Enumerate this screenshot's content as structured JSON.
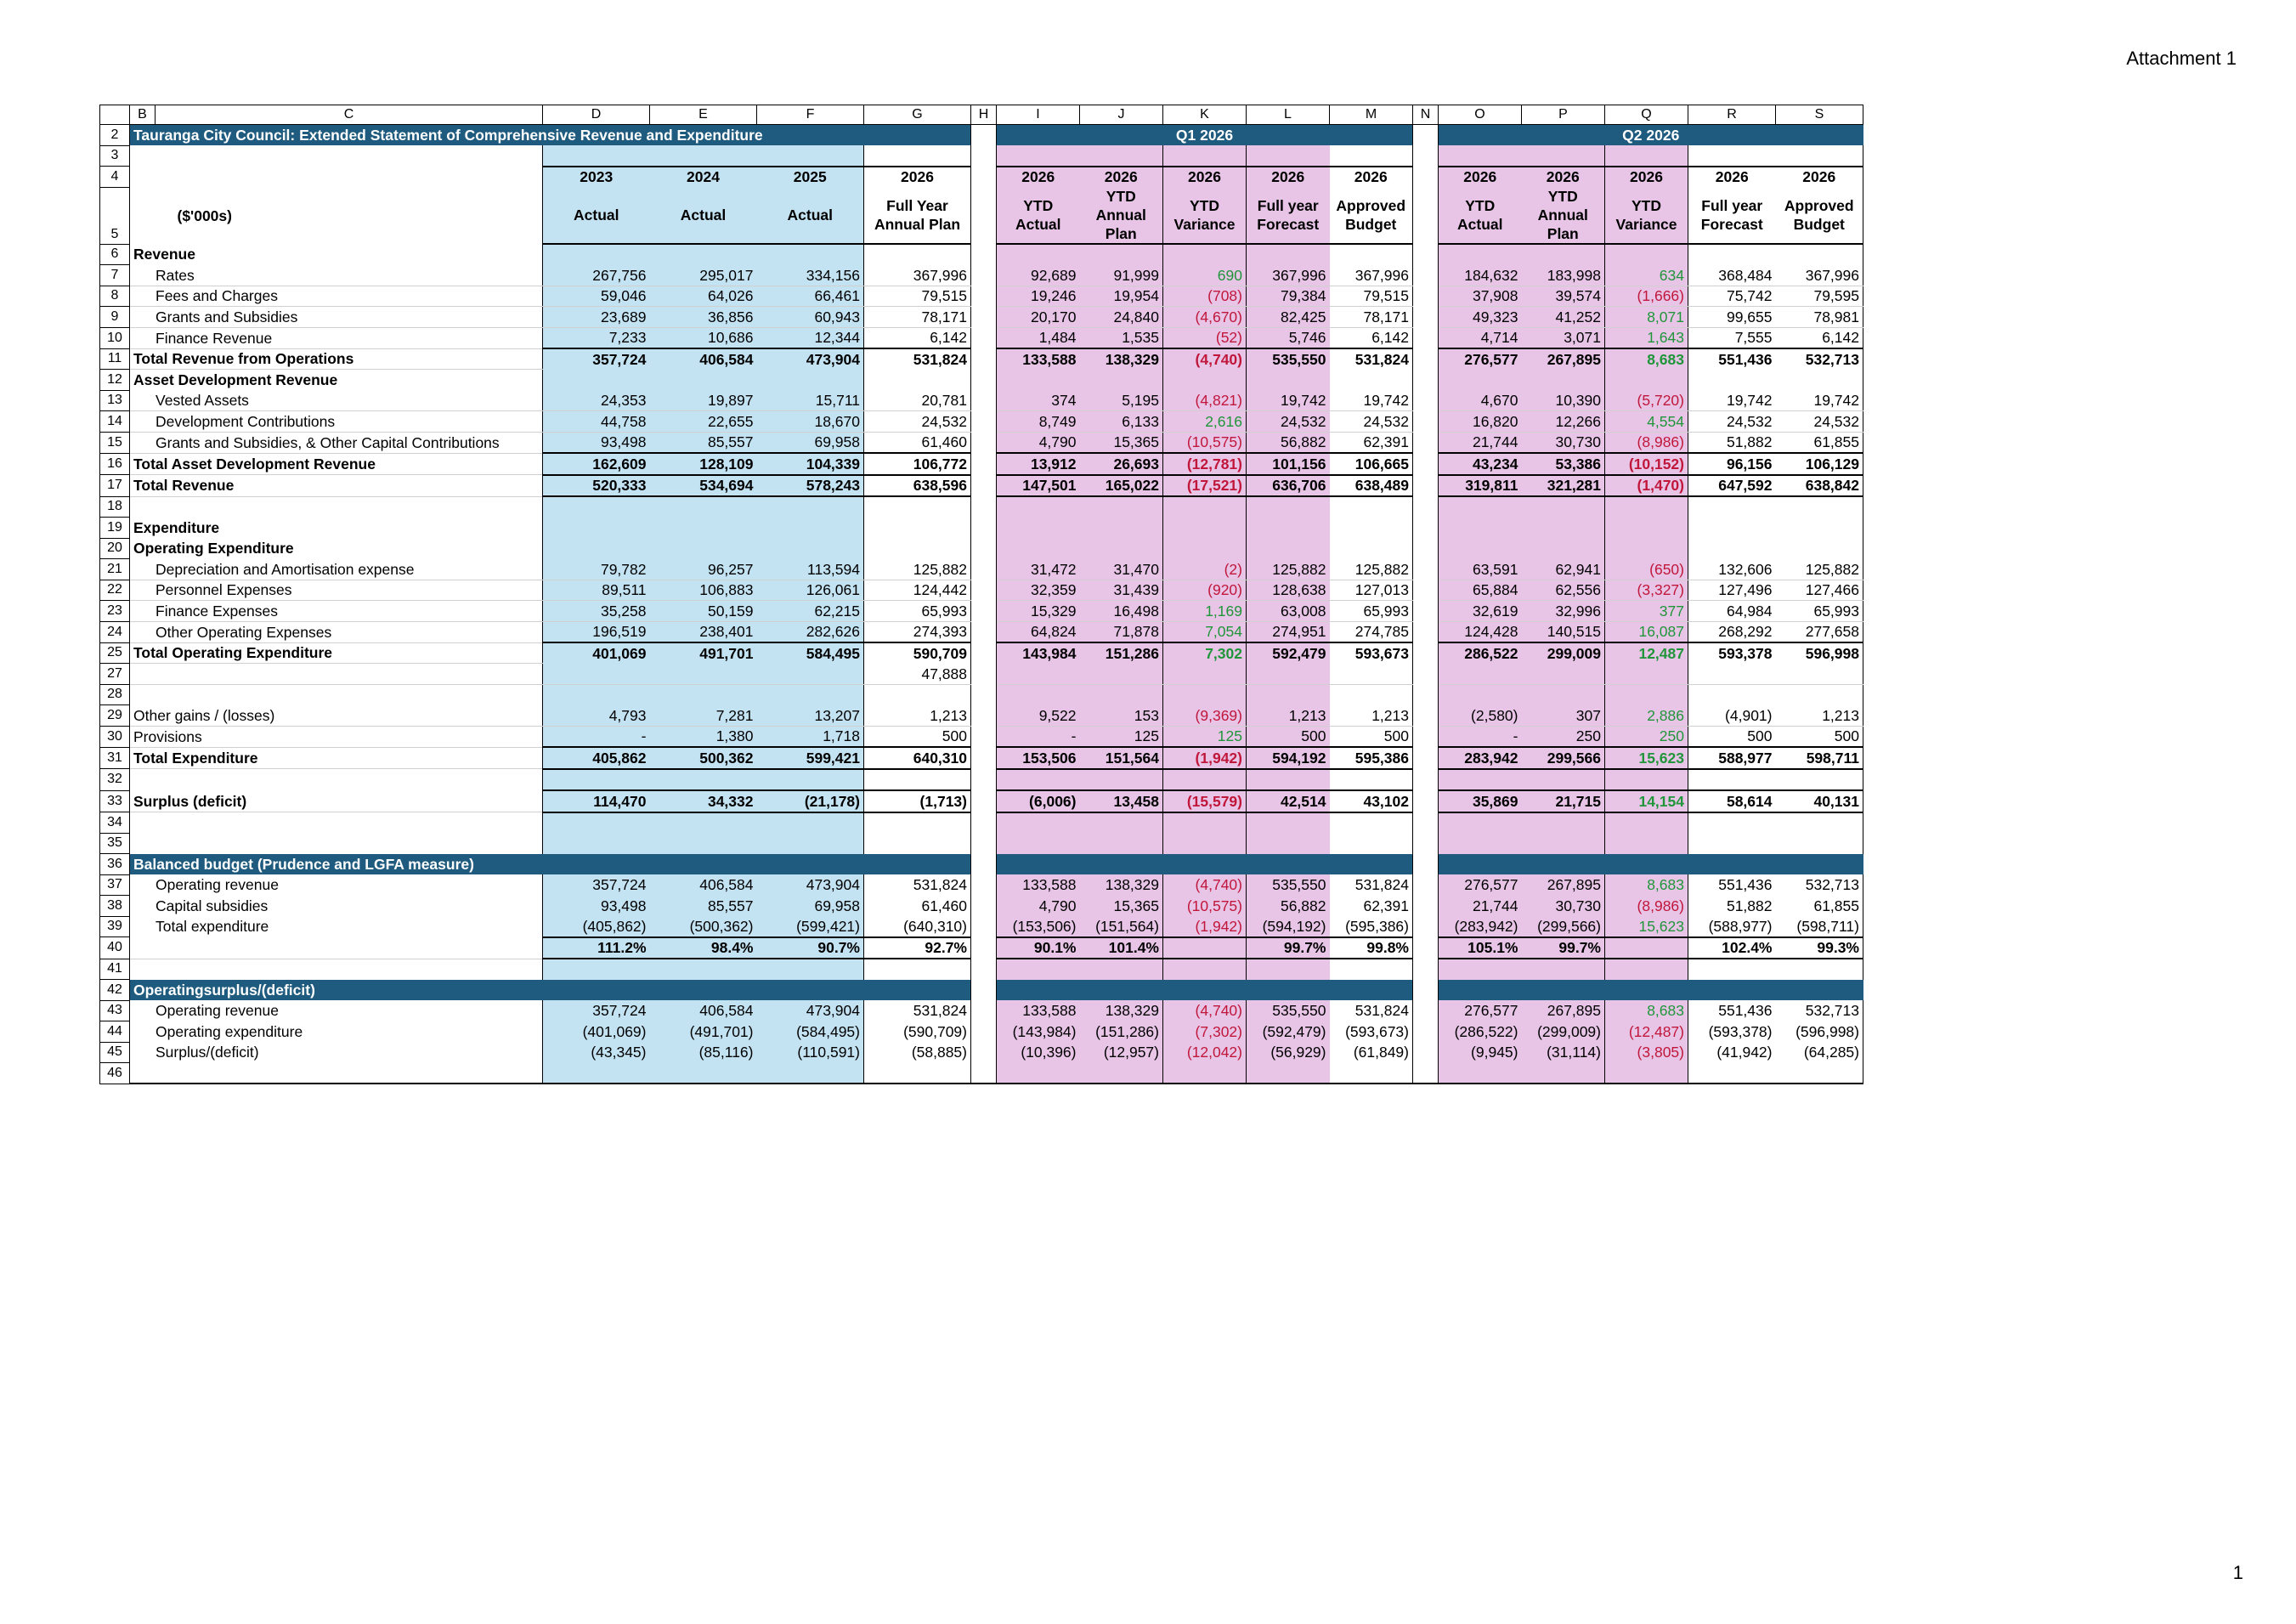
{
  "attachment": "Attachment 1",
  "page_number": "1",
  "title": "Tauranga City Council: Extended Statement of Comprehensive Revenue and Expenditure",
  "units_label": "($'000s)",
  "col_letters": [
    "B",
    "C",
    "D",
    "E",
    "F",
    "G",
    "H",
    "I",
    "J",
    "K",
    "L",
    "M",
    "N",
    "O",
    "P",
    "Q",
    "R",
    "S"
  ],
  "q1_label": "Q1 2026",
  "q2_label": "Q2 2026",
  "years": [
    "2023",
    "2024",
    "2025",
    "2026",
    "2026",
    "2026",
    "2026",
    "2026",
    "2026",
    "2026",
    "2026",
    "2026",
    "2026",
    "2026"
  ],
  "col_heads": [
    "Actual",
    "Actual",
    "Actual",
    "Full Year Annual Plan",
    "YTD Actual",
    "YTD Annual Plan",
    "YTD Variance",
    "Full year Forecast",
    "Approved Budget",
    "YTD Actual",
    "YTD Annual Plan",
    "YTD Variance",
    "Full year Forecast",
    "Approved Budget"
  ],
  "rows": [
    {
      "n": "6",
      "label": "Revenue",
      "bold": true
    },
    {
      "n": "7",
      "label": "Rates",
      "indent": true,
      "v": [
        "267,756",
        "295,017",
        "334,156",
        "367,996",
        "92,689",
        "91,999",
        "690",
        "367,996",
        "367,996",
        "184,632",
        "183,998",
        "634",
        "368,484",
        "367,996"
      ]
    },
    {
      "n": "8",
      "label": "Fees and Charges",
      "indent": true,
      "v": [
        "59,046",
        "64,026",
        "66,461",
        "79,515",
        "19,246",
        "19,954",
        "(708)",
        "79,384",
        "79,515",
        "37,908",
        "39,574",
        "(1,666)",
        "75,742",
        "79,595"
      ]
    },
    {
      "n": "9",
      "label": "Grants and Subsidies",
      "indent": true,
      "v": [
        "23,689",
        "36,856",
        "60,943",
        "78,171",
        "20,170",
        "24,840",
        "(4,670)",
        "82,425",
        "78,171",
        "49,323",
        "41,252",
        "8,071",
        "99,655",
        "78,981"
      ]
    },
    {
      "n": "10",
      "label": "Finance Revenue",
      "indent": true,
      "v": [
        "7,233",
        "10,686",
        "12,344",
        "6,142",
        "1,484",
        "1,535",
        "(52)",
        "5,746",
        "6,142",
        "4,714",
        "3,071",
        "1,643",
        "7,555",
        "6,142"
      ]
    },
    {
      "n": "11",
      "label": "Total Revenue from Operations",
      "bold": true,
      "top": true,
      "v": [
        "357,724",
        "406,584",
        "473,904",
        "531,824",
        "133,588",
        "138,329",
        "(4,740)",
        "535,550",
        "531,824",
        "276,577",
        "267,895",
        "8,683",
        "551,436",
        "532,713"
      ]
    },
    {
      "n": "12",
      "label": "Asset Development Revenue",
      "bold": true
    },
    {
      "n": "13",
      "label": "Vested Assets",
      "indent": true,
      "v": [
        "24,353",
        "19,897",
        "15,711",
        "20,781",
        "374",
        "5,195",
        "(4,821)",
        "19,742",
        "19,742",
        "4,670",
        "10,390",
        "(5,720)",
        "19,742",
        "19,742"
      ]
    },
    {
      "n": "14",
      "label": "Development Contributions",
      "indent": true,
      "v": [
        "44,758",
        "22,655",
        "18,670",
        "24,532",
        "8,749",
        "6,133",
        "2,616",
        "24,532",
        "24,532",
        "16,820",
        "12,266",
        "4,554",
        "24,532",
        "24,532"
      ]
    },
    {
      "n": "15",
      "label": "Grants and Subsidies, & Other Capital Contributions",
      "indent": true,
      "v": [
        "93,498",
        "85,557",
        "69,958",
        "61,460",
        "4,790",
        "15,365",
        "(10,575)",
        "56,882",
        "62,391",
        "21,744",
        "30,730",
        "(8,986)",
        "51,882",
        "61,855"
      ]
    },
    {
      "n": "16",
      "label": "Total Asset Development Revenue",
      "bold": true,
      "top": true,
      "v": [
        "162,609",
        "128,109",
        "104,339",
        "106,772",
        "13,912",
        "26,693",
        "(12,781)",
        "101,156",
        "106,665",
        "43,234",
        "53,386",
        "(10,152)",
        "96,156",
        "106,129"
      ]
    },
    {
      "n": "17",
      "label": "Total Revenue",
      "bold": true,
      "top": true,
      "bottom": true,
      "v": [
        "520,333",
        "534,694",
        "578,243",
        "638,596",
        "147,501",
        "165,022",
        "(17,521)",
        "636,706",
        "638,489",
        "319,811",
        "321,281",
        "(1,470)",
        "647,592",
        "638,842"
      ]
    },
    {
      "n": "18",
      "label": ""
    },
    {
      "n": "19",
      "label": "Expenditure",
      "bold": true
    },
    {
      "n": "20",
      "label": "Operating Expenditure",
      "bold": true
    },
    {
      "n": "21",
      "label": "Depreciation and Amortisation expense",
      "indent": true,
      "v": [
        "79,782",
        "96,257",
        "113,594",
        "125,882",
        "31,472",
        "31,470",
        "(2)",
        "125,882",
        "125,882",
        "63,591",
        "62,941",
        "(650)",
        "132,606",
        "125,882"
      ]
    },
    {
      "n": "22",
      "label": "Personnel Expenses",
      "indent": true,
      "v": [
        "89,511",
        "106,883",
        "126,061",
        "124,442",
        "32,359",
        "31,439",
        "(920)",
        "128,638",
        "127,013",
        "65,884",
        "62,556",
        "(3,327)",
        "127,496",
        "127,466"
      ]
    },
    {
      "n": "23",
      "label": "Finance Expenses",
      "indent": true,
      "v": [
        "35,258",
        "50,159",
        "62,215",
        "65,993",
        "15,329",
        "16,498",
        "1,169",
        "63,008",
        "65,993",
        "32,619",
        "32,996",
        "377",
        "64,984",
        "65,993"
      ]
    },
    {
      "n": "24",
      "label": "Other Operating Expenses",
      "indent": true,
      "v": [
        "196,519",
        "238,401",
        "282,626",
        "274,393",
        "64,824",
        "71,878",
        "7,054",
        "274,951",
        "274,785",
        "124,428",
        "140,515",
        "16,087",
        "268,292",
        "277,658"
      ]
    },
    {
      "n": "25",
      "label": "Total Operating Expenditure",
      "bold": true,
      "top": true,
      "v": [
        "401,069",
        "491,701",
        "584,495",
        "590,709",
        "143,984",
        "151,286",
        "7,302",
        "592,479",
        "593,673",
        "286,522",
        "299,009",
        "12,487",
        "593,378",
        "596,998"
      ]
    },
    {
      "n": "27",
      "label": "",
      "v": [
        "",
        "",
        "",
        "47,888",
        "",
        "",
        "",
        "",
        "",
        "",
        "",
        "",
        "",
        ""
      ]
    },
    {
      "n": "28",
      "label": ""
    },
    {
      "n": "29",
      "label": "Other gains / (losses)",
      "noind": true,
      "v": [
        "4,793",
        "7,281",
        "13,207",
        "1,213",
        "9,522",
        "153",
        "(9,369)",
        "1,213",
        "1,213",
        "(2,580)",
        "307",
        "2,886",
        "(4,901)",
        "1,213"
      ]
    },
    {
      "n": "30",
      "label": "Provisions",
      "noind": true,
      "v": [
        "-",
        "1,380",
        "1,718",
        "500",
        "-",
        "125",
        "125",
        "500",
        "500",
        "-",
        "250",
        "250",
        "500",
        "500"
      ]
    },
    {
      "n": "31",
      "label": "Total Expenditure",
      "bold": true,
      "top": true,
      "bottom": true,
      "v": [
        "405,862",
        "500,362",
        "599,421",
        "640,310",
        "153,506",
        "151,564",
        "(1,942)",
        "594,192",
        "595,386",
        "283,942",
        "299,566",
        "15,623",
        "588,977",
        "598,711"
      ]
    },
    {
      "n": "32",
      "label": ""
    },
    {
      "n": "33",
      "label": "Surplus (deficit)",
      "bold": true,
      "top": true,
      "bottom": true,
      "v": [
        "114,470",
        "34,332",
        "(21,178)",
        "(1,713)",
        "(6,006)",
        "13,458",
        "(15,579)",
        "42,514",
        "43,102",
        "35,869",
        "21,715",
        "14,154",
        "58,614",
        "40,131"
      ]
    },
    {
      "n": "34",
      "label": ""
    },
    {
      "n": "35",
      "label": ""
    },
    {
      "n": "36",
      "label": "Balanced budget (Prudence and LGFA measure)",
      "banner": true
    },
    {
      "n": "37",
      "label": "Operating revenue",
      "indent": true,
      "lg": true,
      "v": [
        "357,724",
        "406,584",
        "473,904",
        "531,824",
        "133,588",
        "138,329",
        "(4,740)",
        "535,550",
        "531,824",
        "276,577",
        "267,895",
        "8,683",
        "551,436",
        "532,713"
      ]
    },
    {
      "n": "38",
      "label": "Capital subsidies",
      "indent": true,
      "lg": true,
      "v": [
        "93,498",
        "85,557",
        "69,958",
        "61,460",
        "4,790",
        "15,365",
        "(10,575)",
        "56,882",
        "62,391",
        "21,744",
        "30,730",
        "(8,986)",
        "51,882",
        "61,855"
      ]
    },
    {
      "n": "39",
      "label": "Total expenditure",
      "indent": true,
      "lg": true,
      "v": [
        "(405,862)",
        "(500,362)",
        "(599,421)",
        "(640,310)",
        "(153,506)",
        "(151,564)",
        "(1,942)",
        "(594,192)",
        "(595,386)",
        "(283,942)",
        "(299,566)",
        "15,623",
        "(588,977)",
        "(598,711)"
      ]
    },
    {
      "n": "40",
      "label": "",
      "bold": true,
      "top": true,
      "bottom": true,
      "v": [
        "111.2%",
        "98.4%",
        "90.7%",
        "92.7%",
        "90.1%",
        "101.4%",
        "",
        "99.7%",
        "99.8%",
        "105.1%",
        "99.7%",
        "",
        "102.4%",
        "99.3%"
      ]
    },
    {
      "n": "41",
      "label": ""
    },
    {
      "n": "42",
      "label": "Operatingsurplus/(deficit)",
      "banner": true
    },
    {
      "n": "43",
      "label": "Operating revenue",
      "indent": true,
      "lg": true,
      "v": [
        "357,724",
        "406,584",
        "473,904",
        "531,824",
        "133,588",
        "138,329",
        "(4,740)",
        "535,550",
        "531,824",
        "276,577",
        "267,895",
        "8,683",
        "551,436",
        "532,713"
      ]
    },
    {
      "n": "44",
      "label": "Operating expenditure",
      "indent": true,
      "lg": true,
      "v": [
        "(401,069)",
        "(491,701)",
        "(584,495)",
        "(590,709)",
        "(143,984)",
        "(151,286)",
        "(7,302)",
        "(592,479)",
        "(593,673)",
        "(286,522)",
        "(299,009)",
        "(12,487)",
        "(593,378)",
        "(596,998)"
      ]
    },
    {
      "n": "45",
      "label": "Surplus/(deficit)",
      "indent": true,
      "lg": true,
      "v": [
        "(43,345)",
        "(85,116)",
        "(110,591)",
        "(58,885)",
        "(10,396)",
        "(12,957)",
        "(12,042)",
        "(56,929)",
        "(61,849)",
        "(9,945)",
        "(31,114)",
        "(3,805)",
        "(41,942)",
        "(64,285)"
      ]
    },
    {
      "n": "46",
      "label": ""
    }
  ],
  "colors": {
    "header_navy": "#1f5b7e",
    "actuals_blue": "#c3e3f3",
    "quarter_pink": "#e8c5e7",
    "negative_red": "#c0163a",
    "positive_green": "#20953a"
  }
}
